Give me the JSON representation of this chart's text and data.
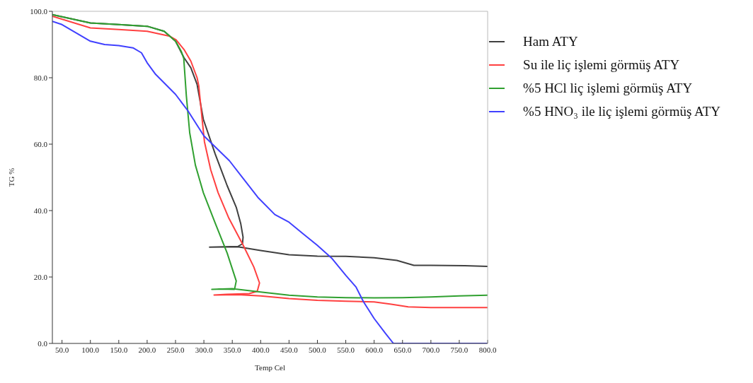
{
  "chart_data": {
    "type": "line",
    "xlabel": "Temp Cel",
    "ylabel": "TG %",
    "xlim": [
      33,
      800
    ],
    "ylim": [
      0,
      100
    ],
    "xticks": [
      {
        "value": 50,
        "label": "50.0"
      },
      {
        "value": 100,
        "label": "100.0"
      },
      {
        "value": 150,
        "label": "150.0"
      },
      {
        "value": 200,
        "label": "200.0"
      },
      {
        "value": 250,
        "label": "250.0"
      },
      {
        "value": 300,
        "label": "300.0"
      },
      {
        "value": 350,
        "label": "350.0"
      },
      {
        "value": 400,
        "label": "400.0"
      },
      {
        "value": 450,
        "label": "450.0"
      },
      {
        "value": 500,
        "label": "500.0"
      },
      {
        "value": 550,
        "label": "550.0"
      },
      {
        "value": 600,
        "label": "600.0"
      },
      {
        "value": 650,
        "label": "650.0"
      },
      {
        "value": 700,
        "label": "700.0"
      },
      {
        "value": 750,
        "label": "750.0"
      },
      {
        "value": 800,
        "label": "800.0"
      }
    ],
    "yticks": [
      {
        "value": 0,
        "label": "0.0"
      },
      {
        "value": 20,
        "label": "20.0"
      },
      {
        "value": 40,
        "label": "40.0"
      },
      {
        "value": 60,
        "label": "60.0"
      },
      {
        "value": 80,
        "label": "80.0"
      },
      {
        "value": 100,
        "label": "100.0"
      }
    ],
    "legend": "top right",
    "marker": "none",
    "line_style": "solid",
    "series": [
      {
        "name": "Ham ATY",
        "color": "#404040",
        "x": [
          33,
          100,
          150,
          200,
          230,
          250,
          265,
          277,
          288,
          299,
          320,
          341,
          357,
          365,
          369,
          368,
          360,
          310,
          360,
          400,
          450,
          500,
          550,
          600,
          640,
          670,
          700,
          760,
          800
        ],
        "values": [
          99,
          96.5,
          96,
          95.5,
          94,
          91,
          86,
          83,
          78,
          67.5,
          57,
          47.5,
          41,
          36,
          32,
          30,
          29.2,
          29,
          29.1,
          28,
          26.7,
          26.3,
          26.2,
          25.8,
          25,
          23.5,
          23.5,
          23.4,
          23.2
        ]
      },
      {
        "name": "Su ile liç işlemi görmüş ATY",
        "color": "#ff4040",
        "x": [
          33,
          100,
          150,
          200,
          240,
          251,
          265,
          277,
          288,
          291,
          296,
          301,
          312,
          325,
          344,
          370,
          388,
          398,
          394,
          380,
          340,
          318,
          360,
          400,
          450,
          500,
          550,
          600,
          630,
          660,
          700,
          800
        ],
        "values": [
          98.5,
          95,
          94.5,
          94,
          92.5,
          91.4,
          88.5,
          85,
          80,
          77.5,
          69,
          60.7,
          52.3,
          45.4,
          37.7,
          29.3,
          23,
          18.2,
          15.7,
          15,
          14.8,
          14.6,
          14.7,
          14.3,
          13.5,
          13,
          12.7,
          12.5,
          11.8,
          11,
          10.8,
          10.8
        ]
      },
      {
        "name": "%5 HCl liç işlemi görmüş ATY",
        "color": "#30a030",
        "x": [
          33,
          100,
          150,
          200,
          230,
          250,
          260,
          264.5,
          269,
          275,
          285,
          299,
          320,
          341,
          357,
          354,
          330,
          314,
          350,
          400,
          450,
          500,
          550,
          600,
          650,
          700,
          750,
          800
        ],
        "values": [
          99,
          96.5,
          96,
          95.5,
          94,
          91,
          88,
          85.8,
          74.7,
          63.4,
          53.7,
          45.4,
          36.2,
          27.2,
          18.8,
          16.3,
          16.4,
          16.3,
          16.5,
          15.5,
          14.5,
          14,
          13.8,
          13.7,
          13.8,
          14,
          14.3,
          14.5
        ]
      },
      {
        "name": "%5 HNO₃ ile liç işlemi görmüş ATY",
        "color": "#4040ff",
        "x": [
          33,
          50,
          75,
          100,
          125,
          150,
          175,
          190,
          200,
          215,
          250,
          272,
          300,
          315,
          345,
          370,
          395,
          425,
          450,
          475,
          500,
          525,
          550,
          568,
          581,
          600,
          620,
          634,
          700,
          800
        ],
        "values": [
          97,
          96,
          93.5,
          91,
          90,
          89.7,
          89,
          87.5,
          84.5,
          81,
          75,
          70,
          62.5,
          60,
          55,
          49.5,
          44,
          38.8,
          36.5,
          33,
          29.5,
          25.7,
          20.5,
          17,
          12.6,
          7.5,
          3,
          0,
          0,
          0
        ]
      }
    ]
  }
}
